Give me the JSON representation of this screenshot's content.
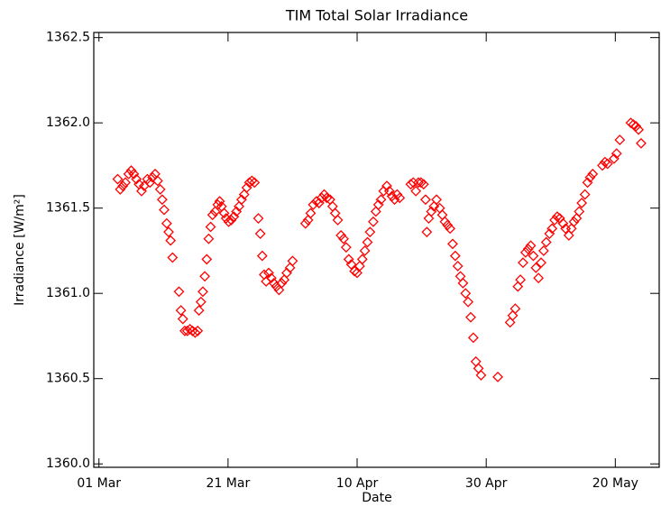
{
  "chart_data": {
    "type": "scatter",
    "title": "TIM Total Solar Irradiance",
    "x_label": "Date",
    "y_label": "Irradiance [W/m²]",
    "color": "#ff0000",
    "x": [
      2.9,
      3.3,
      3.7,
      4.1,
      4.6,
      5.0,
      5.4,
      5.8,
      6.2,
      6.6,
      7.0,
      7.5,
      7.9,
      8.3,
      8.7,
      9.1,
      9.5,
      9.8,
      10.1,
      10.5,
      10.8,
      11.1,
      11.4,
      12.4,
      12.7,
      13.0,
      13.3,
      13.7,
      14.1,
      14.5,
      14.9,
      15.3,
      15.5,
      15.8,
      16.1,
      16.4,
      16.7,
      17.0,
      17.3,
      17.6,
      18.0,
      18.4,
      18.7,
      19.0,
      19.4,
      19.7,
      20.1,
      20.5,
      20.9,
      21.3,
      21.7,
      22.1,
      22.5,
      22.9,
      23.3,
      23.7,
      24.1,
      24.7,
      25.0,
      25.3,
      25.6,
      25.9,
      26.3,
      26.7,
      27.1,
      27.5,
      27.9,
      28.3,
      28.7,
      29.1,
      29.6,
      30.0,
      32.0,
      32.4,
      32.8,
      33.2,
      33.7,
      34.1,
      34.5,
      34.9,
      35.3,
      35.8,
      36.2,
      36.6,
      37.0,
      37.5,
      37.9,
      38.3,
      38.7,
      39.1,
      39.6,
      40.0,
      40.4,
      40.8,
      41.2,
      41.6,
      42.0,
      42.5,
      42.9,
      43.3,
      43.7,
      44.1,
      44.6,
      45.0,
      45.4,
      45.8,
      46.2,
      46.6,
      48.3,
      48.7,
      49.1,
      49.5,
      49.9,
      50.3,
      50.6,
      50.8,
      51.1,
      51.5,
      51.9,
      52.3,
      52.8,
      53.2,
      53.6,
      54.0,
      54.4,
      54.8,
      55.2,
      55.6,
      56.0,
      56.4,
      56.8,
      57.2,
      57.6,
      58.0,
      58.4,
      58.8,
      59.2,
      61.8,
      63.7,
      64.1,
      64.5,
      64.9,
      65.3,
      65.7,
      66.1,
      66.5,
      66.9,
      67.3,
      67.7,
      68.1,
      68.5,
      68.9,
      69.3,
      69.8,
      70.2,
      70.6,
      71.0,
      71.4,
      71.9,
      72.3,
      72.8,
      73.2,
      73.6,
      74.0,
      74.4,
      74.8,
      75.3,
      75.7,
      76.1,
      76.5,
      78.0,
      78.4,
      78.8,
      79.8,
      80.2,
      80.7,
      82.4,
      82.8,
      83.2,
      83.6,
      84.0
    ],
    "values": [
      1361.67,
      1361.61,
      1361.63,
      1361.65,
      1361.7,
      1361.72,
      1361.7,
      1361.67,
      1361.64,
      1361.6,
      1361.63,
      1361.67,
      1361.65,
      1361.68,
      1361.7,
      1361.66,
      1361.61,
      1361.55,
      1361.49,
      1361.41,
      1361.36,
      1361.31,
      1361.21,
      1361.01,
      1360.9,
      1360.85,
      1360.78,
      1360.78,
      1360.79,
      1360.78,
      1360.77,
      1360.78,
      1360.9,
      1360.95,
      1361.01,
      1361.1,
      1361.2,
      1361.32,
      1361.39,
      1361.46,
      1361.48,
      1361.52,
      1361.54,
      1361.51,
      1361.47,
      1361.44,
      1361.42,
      1361.43,
      1361.45,
      1361.48,
      1361.51,
      1361.55,
      1361.58,
      1361.62,
      1361.65,
      1361.66,
      1361.65,
      1361.44,
      1361.35,
      1361.22,
      1361.11,
      1361.07,
      1361.12,
      1361.09,
      1361.06,
      1361.04,
      1361.02,
      1361.06,
      1361.08,
      1361.12,
      1361.15,
      1361.19,
      1361.41,
      1361.43,
      1361.47,
      1361.52,
      1361.54,
      1361.53,
      1361.56,
      1361.58,
      1361.56,
      1361.55,
      1361.51,
      1361.47,
      1361.43,
      1361.34,
      1361.32,
      1361.27,
      1361.2,
      1361.17,
      1361.13,
      1361.12,
      1361.16,
      1361.2,
      1361.25,
      1361.3,
      1361.36,
      1361.42,
      1361.48,
      1361.52,
      1361.55,
      1361.6,
      1361.63,
      1361.6,
      1361.57,
      1361.55,
      1361.58,
      1361.56,
      1361.64,
      1361.65,
      1361.6,
      1361.65,
      1361.65,
      1361.64,
      1361.55,
      1361.36,
      1361.44,
      1361.48,
      1361.51,
      1361.55,
      1361.5,
      1361.46,
      1361.42,
      1361.4,
      1361.38,
      1361.29,
      1361.22,
      1361.16,
      1361.1,
      1361.06,
      1361.0,
      1360.95,
      1360.86,
      1360.74,
      1360.6,
      1360.56,
      1360.52,
      1360.51,
      1360.83,
      1360.87,
      1360.91,
      1361.04,
      1361.08,
      1361.18,
      1361.24,
      1361.26,
      1361.28,
      1361.22,
      1361.15,
      1361.09,
      1361.18,
      1361.25,
      1361.3,
      1361.35,
      1361.38,
      1361.43,
      1361.45,
      1361.44,
      1361.41,
      1361.38,
      1361.34,
      1361.38,
      1361.42,
      1361.44,
      1361.48,
      1361.53,
      1361.58,
      1361.65,
      1361.68,
      1361.7,
      1361.75,
      1361.77,
      1361.76,
      1361.79,
      1361.82,
      1361.9,
      1362.0,
      1361.99,
      1361.98,
      1361.96,
      1361.88
    ],
    "xlim": [
      -0.8,
      86.8
    ],
    "xticks": [
      {
        "value": 0,
        "label": "01 Mar"
      },
      {
        "value": 20,
        "label": "21 Mar"
      },
      {
        "value": 40,
        "label": "10 Apr"
      },
      {
        "value": 60,
        "label": "30 Apr"
      },
      {
        "value": 80,
        "label": "20 May"
      }
    ],
    "ylim": [
      1359.98,
      1362.53
    ],
    "yticks": [
      {
        "value": 1360,
        "label": "1360.0"
      },
      1360.5,
      {
        "value": 1361,
        "label": "1361.0"
      },
      1361.5,
      {
        "value": 1362,
        "label": "1362.0"
      },
      1362.5
    ]
  }
}
